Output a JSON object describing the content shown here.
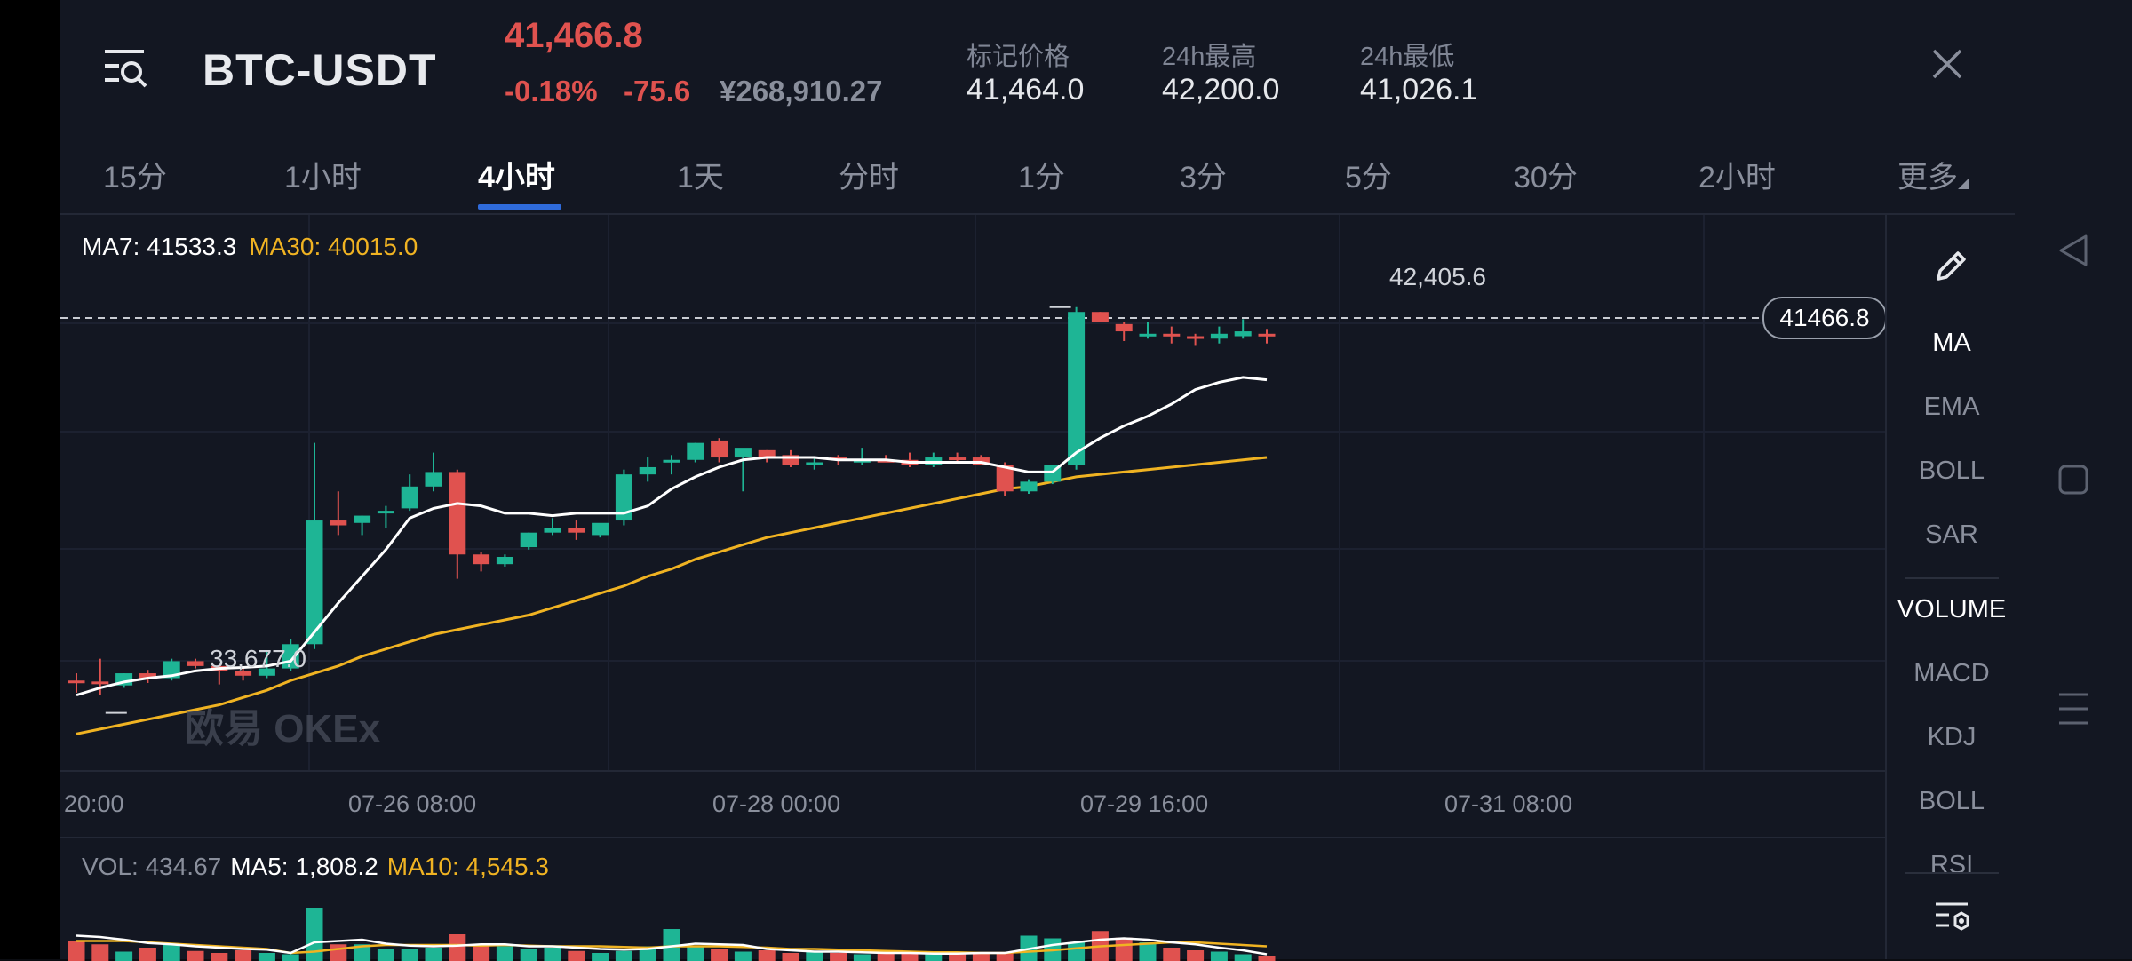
{
  "header": {
    "pair": "BTC-USDT",
    "last_price": "41,466.8",
    "change_pct": "-0.18%",
    "change_val": "-75.6",
    "cny_price": "¥268,910.27",
    "stats": [
      {
        "label": "标记价格",
        "value": "41,464.0"
      },
      {
        "label": "24h最高",
        "value": "42,200.0"
      },
      {
        "label": "24h最低",
        "value": "41,026.1"
      }
    ]
  },
  "tabs": [
    "15分",
    "1小时",
    "4小时",
    "1天",
    "分时",
    "1分",
    "3分",
    "5分",
    "30分",
    "2小时",
    "更多"
  ],
  "active_tab": "4小时",
  "legend": {
    "ma7": "MA7: 41533.3",
    "ma30": "MA30: 40015.0"
  },
  "price_tag": "41466.8",
  "hi_label": "42,405.6",
  "lo_label": "33,677.0",
  "watermark": "欧易 OKEx",
  "x_labels": [
    "20:00",
    "07-26 08:00",
    "07-28 00:00",
    "07-29 16:00",
    "07-31 08:00"
  ],
  "indicators": [
    "MA",
    "EMA",
    "BOLL",
    "SAR",
    "VOLUME",
    "MACD",
    "KDJ",
    "BOLL",
    "RSI"
  ],
  "vol_legend": {
    "vol": "VOL: 434.67",
    "ma5": "MA5: 1,808.2",
    "ma10": "MA10: 4,545.3"
  },
  "colors": {
    "up": "#1eb595",
    "down": "#e0524f",
    "ma7": "#ffffff",
    "ma30": "#f0b322",
    "accent": "#2f6bdb"
  },
  "chart_data": {
    "type": "candlestick",
    "title": "BTC-USDT",
    "interval": "4小时",
    "ylim": [
      32000,
      43500
    ],
    "candles": [
      {
        "o": 33900,
        "h": 34050,
        "l": 33650,
        "c": 33880
      },
      {
        "o": 33880,
        "h": 34350,
        "l": 33600,
        "c": 33870
      },
      {
        "o": 33800,
        "h": 34050,
        "l": 33750,
        "c": 34050
      },
      {
        "o": 34050,
        "h": 34120,
        "l": 33850,
        "c": 33950
      },
      {
        "o": 33950,
        "h": 34350,
        "l": 33900,
        "c": 34300
      },
      {
        "o": 34300,
        "h": 34350,
        "l": 34150,
        "c": 34200
      },
      {
        "o": 34200,
        "h": 34220,
        "l": 33820,
        "c": 34100
      },
      {
        "o": 34100,
        "h": 34150,
        "l": 33900,
        "c": 34000
      },
      {
        "o": 34000,
        "h": 34500,
        "l": 33950,
        "c": 34150
      },
      {
        "o": 34150,
        "h": 34750,
        "l": 34100,
        "c": 34650
      },
      {
        "o": 34650,
        "h": 38800,
        "l": 34550,
        "c": 37200
      },
      {
        "o": 37200,
        "h": 37800,
        "l": 36900,
        "c": 37100
      },
      {
        "o": 37150,
        "h": 37300,
        "l": 36900,
        "c": 37300
      },
      {
        "o": 37400,
        "h": 37500,
        "l": 37050,
        "c": 37400
      },
      {
        "o": 37450,
        "h": 38150,
        "l": 37400,
        "c": 37900
      },
      {
        "o": 37900,
        "h": 38600,
        "l": 37800,
        "c": 38200
      },
      {
        "o": 38200,
        "h": 38250,
        "l": 36000,
        "c": 36500
      },
      {
        "o": 36500,
        "h": 36550,
        "l": 36150,
        "c": 36300
      },
      {
        "o": 36300,
        "h": 36500,
        "l": 36250,
        "c": 36450
      },
      {
        "o": 36650,
        "h": 36950,
        "l": 36600,
        "c": 36950
      },
      {
        "o": 36950,
        "h": 37250,
        "l": 36900,
        "c": 37050
      },
      {
        "o": 37050,
        "h": 37200,
        "l": 36800,
        "c": 36950
      },
      {
        "o": 36900,
        "h": 37100,
        "l": 36850,
        "c": 37150
      },
      {
        "o": 37200,
        "h": 38250,
        "l": 37100,
        "c": 38150
      },
      {
        "o": 38150,
        "h": 38500,
        "l": 38000,
        "c": 38300
      },
      {
        "o": 38450,
        "h": 38550,
        "l": 38150,
        "c": 38450
      },
      {
        "o": 38450,
        "h": 38800,
        "l": 38400,
        "c": 38800
      },
      {
        "o": 38850,
        "h": 38900,
        "l": 38400,
        "c": 38500
      },
      {
        "o": 38500,
        "h": 38600,
        "l": 37800,
        "c": 38700
      },
      {
        "o": 38650,
        "h": 38650,
        "l": 38400,
        "c": 38500
      },
      {
        "o": 38550,
        "h": 38650,
        "l": 38300,
        "c": 38350
      },
      {
        "o": 38350,
        "h": 38500,
        "l": 38250,
        "c": 38400
      },
      {
        "o": 38500,
        "h": 38550,
        "l": 38350,
        "c": 38450
      },
      {
        "o": 38450,
        "h": 38700,
        "l": 38350,
        "c": 38450
      },
      {
        "o": 38450,
        "h": 38550,
        "l": 38400,
        "c": 38400
      },
      {
        "o": 38450,
        "h": 38600,
        "l": 38300,
        "c": 38350
      },
      {
        "o": 38350,
        "h": 38600,
        "l": 38300,
        "c": 38500
      },
      {
        "o": 38500,
        "h": 38600,
        "l": 38400,
        "c": 38450
      },
      {
        "o": 38500,
        "h": 38550,
        "l": 38350,
        "c": 38350
      },
      {
        "o": 38350,
        "h": 38400,
        "l": 37700,
        "c": 37800
      },
      {
        "o": 37800,
        "h": 38050,
        "l": 37750,
        "c": 38000
      },
      {
        "o": 38000,
        "h": 38350,
        "l": 37950,
        "c": 38350
      },
      {
        "o": 38350,
        "h": 41600,
        "l": 38250,
        "c": 41500
      },
      {
        "o": 41500,
        "h": 41500,
        "l": 41300,
        "c": 41300
      },
      {
        "o": 41250,
        "h": 41300,
        "l": 40900,
        "c": 41100
      },
      {
        "o": 41050,
        "h": 41300,
        "l": 40950,
        "c": 41050
      },
      {
        "o": 41050,
        "h": 41200,
        "l": 40850,
        "c": 41000
      },
      {
        "o": 41000,
        "h": 41050,
        "l": 40800,
        "c": 40950
      },
      {
        "o": 40950,
        "h": 41200,
        "l": 40850,
        "c": 41050
      },
      {
        "o": 41000,
        "h": 41350,
        "l": 40950,
        "c": 41100
      },
      {
        "o": 41050,
        "h": 41150,
        "l": 40850,
        "c": 41000
      }
    ],
    "ma7": [
      33600,
      33750,
      33870,
      33950,
      34000,
      34100,
      34150,
      34170,
      34200,
      34300,
      34900,
      35500,
      36050,
      36600,
      37250,
      37450,
      37550,
      37500,
      37350,
      37350,
      37300,
      37350,
      37350,
      37350,
      37500,
      37850,
      38100,
      38300,
      38450,
      38500,
      38500,
      38500,
      38450,
      38450,
      38450,
      38400,
      38400,
      38400,
      38400,
      38300,
      38200,
      38200,
      38600,
      38900,
      39150,
      39350,
      39600,
      39900,
      40050,
      40150,
      40100
    ],
    "ma30": [
      32800,
      32900,
      33000,
      33100,
      33200,
      33300,
      33400,
      33550,
      33700,
      33900,
      34050,
      34200,
      34400,
      34550,
      34700,
      34850,
      34950,
      35050,
      35150,
      35250,
      35400,
      35550,
      35700,
      35850,
      36050,
      36200,
      36400,
      36550,
      36700,
      36850,
      36950,
      37050,
      37150,
      37250,
      37350,
      37450,
      37550,
      37650,
      37750,
      37850,
      37900,
      38000,
      38100,
      38150,
      38200,
      38250,
      38300,
      38350,
      38400,
      38450,
      38500
    ],
    "volume": {
      "values": [
        30,
        25,
        14,
        20,
        25,
        15,
        12,
        16,
        12,
        10,
        80,
        25,
        25,
        18,
        18,
        20,
        40,
        25,
        22,
        18,
        20,
        15,
        12,
        15,
        22,
        48,
        22,
        18,
        14,
        16,
        12,
        14,
        12,
        10,
        12,
        12,
        10,
        14,
        12,
        12,
        38,
        34,
        28,
        45,
        35,
        28,
        20,
        16,
        14,
        10,
        8
      ],
      "ma5": [
        38,
        36,
        32,
        27,
        25,
        22,
        20,
        18,
        17,
        12,
        28,
        30,
        32,
        26,
        23,
        22,
        23,
        25,
        25,
        22,
        22,
        20,
        18,
        17,
        18,
        22,
        26,
        25,
        24,
        18,
        16,
        14,
        14,
        13,
        12,
        12,
        11,
        11,
        12,
        12,
        18,
        24,
        28,
        32,
        34,
        32,
        28,
        25,
        20,
        16,
        10
      ],
      "ma10": [
        30,
        30,
        30,
        28,
        26,
        24,
        22,
        20,
        18,
        12,
        14,
        18,
        22,
        24,
        24,
        24,
        24,
        23,
        24,
        23,
        22,
        22,
        22,
        21,
        20,
        22,
        22,
        22,
        21,
        20,
        18,
        18,
        17,
        16,
        15,
        14,
        13,
        13,
        12,
        12,
        14,
        16,
        19,
        22,
        24,
        26,
        28,
        28,
        26,
        24,
        22
      ]
    }
  }
}
